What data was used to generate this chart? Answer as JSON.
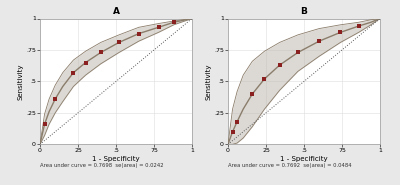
{
  "panel_A": {
    "title": "A",
    "auc_text": "Area under curve = 0.7698  se(area) = 0.0242",
    "roc_x": [
      0.0,
      0.03,
      0.06,
      0.1,
      0.15,
      0.22,
      0.3,
      0.4,
      0.52,
      0.65,
      0.78,
      0.88,
      1.0
    ],
    "roc_y": [
      0.0,
      0.16,
      0.26,
      0.36,
      0.46,
      0.57,
      0.65,
      0.73,
      0.81,
      0.88,
      0.93,
      0.97,
      1.0
    ],
    "ci_upper_y": [
      0.0,
      0.24,
      0.36,
      0.47,
      0.57,
      0.67,
      0.74,
      0.81,
      0.87,
      0.93,
      0.96,
      0.98,
      1.0
    ],
    "ci_lower_y": [
      0.0,
      0.07,
      0.16,
      0.25,
      0.34,
      0.46,
      0.55,
      0.64,
      0.73,
      0.82,
      0.89,
      0.95,
      1.0
    ],
    "points_x": [
      0.03,
      0.1,
      0.22,
      0.3,
      0.4,
      0.52,
      0.65,
      0.78,
      0.88
    ],
    "points_y": [
      0.16,
      0.36,
      0.57,
      0.65,
      0.73,
      0.81,
      0.88,
      0.93,
      0.97
    ]
  },
  "panel_B": {
    "title": "B",
    "auc_text": "Area under curve = 0.7692  se(area) = 0.0484",
    "roc_x": [
      0.0,
      0.03,
      0.06,
      0.1,
      0.16,
      0.24,
      0.34,
      0.46,
      0.6,
      0.74,
      0.86,
      0.94,
      1.0
    ],
    "roc_y": [
      0.0,
      0.1,
      0.18,
      0.28,
      0.4,
      0.52,
      0.63,
      0.73,
      0.82,
      0.89,
      0.94,
      0.97,
      1.0
    ],
    "ci_upper_y": [
      0.0,
      0.28,
      0.42,
      0.55,
      0.66,
      0.74,
      0.81,
      0.87,
      0.92,
      0.95,
      0.97,
      0.99,
      1.0
    ],
    "ci_lower_y": [
      0.0,
      0.0,
      0.01,
      0.05,
      0.14,
      0.28,
      0.43,
      0.58,
      0.7,
      0.81,
      0.89,
      0.95,
      1.0
    ],
    "points_x": [
      0.03,
      0.06,
      0.16,
      0.24,
      0.34,
      0.46,
      0.6,
      0.74,
      0.86
    ],
    "points_y": [
      0.1,
      0.18,
      0.4,
      0.52,
      0.63,
      0.73,
      0.82,
      0.89,
      0.94
    ]
  },
  "outer_bg": "#e8e8e8",
  "plot_bg": "#ffffff",
  "grid_color": "#dddddd",
  "roc_line_color": "#8b7d6b",
  "ci_fill_color": "#c0bab2",
  "ci_fill_alpha": 0.55,
  "ci_line_color": "#8b7d6b",
  "point_color": "#8b2020",
  "point_size": 6,
  "diag_color": "#555555",
  "ylabel": "Sensitivity",
  "xlabel": "1 - Specificity",
  "xticks": [
    0,
    0.25,
    0.5,
    0.75,
    1.0
  ],
  "xticklabels": [
    "0",
    "25",
    ".5",
    "75",
    "1"
  ],
  "yticks": [
    0,
    0.25,
    0.5,
    0.75,
    1.0
  ],
  "yticklabels": [
    "0",
    ".25",
    ".5",
    ".75",
    "1"
  ],
  "tick_fontsize": 4.5,
  "label_fontsize": 5.0,
  "auc_fontsize": 3.8,
  "title_fontsize": 6.5
}
